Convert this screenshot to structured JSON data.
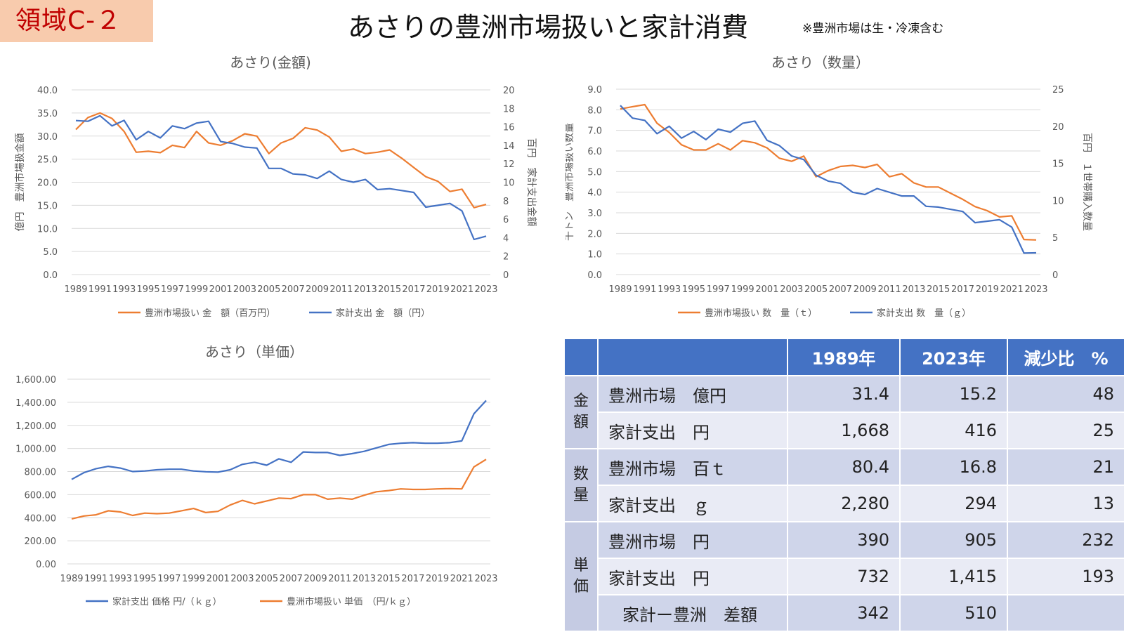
{
  "header": {
    "area_tag": "領域C-２",
    "title": "あさりの豊洲市場扱いと家計消費",
    "note": "※豊洲市場は生・冷凍含む"
  },
  "chart_data": [
    {
      "type": "line",
      "title": "あさり(金額)",
      "x": [
        1989,
        1990,
        1991,
        1992,
        1993,
        1994,
        1995,
        1996,
        1997,
        1998,
        1999,
        2000,
        2001,
        2002,
        2003,
        2004,
        2005,
        2006,
        2007,
        2008,
        2009,
        2010,
        2011,
        2012,
        2013,
        2014,
        2015,
        2016,
        2017,
        2018,
        2019,
        2020,
        2021,
        2022,
        2023
      ],
      "xticks": [
        "1989",
        "1991",
        "1993",
        "1995",
        "1997",
        "1999",
        "2001",
        "2003",
        "2005",
        "2007",
        "2009",
        "2011",
        "2013",
        "2015",
        "2017",
        "2019",
        "2021",
        "2023"
      ],
      "ylabel_left": "億円　豊洲市場扱金額",
      "ylabel_right": "百円　家計支出金額",
      "ylim_left": [
        0,
        40
      ],
      "ylim_right": [
        0,
        20
      ],
      "yticks_left": [
        "0.0",
        "5.0",
        "10.0",
        "15.0",
        "20.0",
        "25.0",
        "30.0",
        "35.0",
        "40.0"
      ],
      "yticks_right": [
        "0",
        "2",
        "4",
        "6",
        "8",
        "10",
        "12",
        "14",
        "16",
        "18",
        "20"
      ],
      "grid": true,
      "legend": "bottom",
      "series": [
        {
          "name": "豊洲市場扱い 金　額（百万円）",
          "axis": "left",
          "color": "#ed7d31",
          "values": [
            31.4,
            34.0,
            35.0,
            33.8,
            31.0,
            26.5,
            26.7,
            26.4,
            28.0,
            27.5,
            31.0,
            28.5,
            28.0,
            29.0,
            30.5,
            30.0,
            26.2,
            28.5,
            29.5,
            31.8,
            31.3,
            29.8,
            26.7,
            27.2,
            26.2,
            26.5,
            27.0,
            25.2,
            23.2,
            21.2,
            20.2,
            18.0,
            18.5,
            14.5,
            15.2
          ]
        },
        {
          "name": "家計支出 金　額（円）",
          "axis": "right",
          "color": "#4472c4",
          "values": [
            16.68,
            16.6,
            17.2,
            16.1,
            16.7,
            14.6,
            15.5,
            14.8,
            16.1,
            15.8,
            16.4,
            16.6,
            14.4,
            14.2,
            13.8,
            13.7,
            11.5,
            11.5,
            10.9,
            10.8,
            10.4,
            11.2,
            10.3,
            10.0,
            10.3,
            9.2,
            9.3,
            9.1,
            8.9,
            7.3,
            7.5,
            7.7,
            6.9,
            3.8,
            4.16
          ]
        }
      ]
    },
    {
      "type": "line",
      "title": "あさり（数量）",
      "x": [
        1989,
        1990,
        1991,
        1992,
        1993,
        1994,
        1995,
        1996,
        1997,
        1998,
        1999,
        2000,
        2001,
        2002,
        2003,
        2004,
        2005,
        2006,
        2007,
        2008,
        2009,
        2010,
        2011,
        2012,
        2013,
        2014,
        2015,
        2016,
        2017,
        2018,
        2019,
        2020,
        2021,
        2022,
        2023
      ],
      "xticks": [
        "1989",
        "1991",
        "1993",
        "1995",
        "1997",
        "1999",
        "2001",
        "2003",
        "2005",
        "2007",
        "2009",
        "2011",
        "2013",
        "2015",
        "2017",
        "2019",
        "2021",
        "2023"
      ],
      "ylabel_left": "千トン　豊洲市場扱い数量",
      "ylabel_right": "百円　１世帯購入数量",
      "ylim_left": [
        0,
        9
      ],
      "ylim_right": [
        0,
        25
      ],
      "yticks_left": [
        "0.0",
        "1.0",
        "2.0",
        "3.0",
        "4.0",
        "5.0",
        "6.0",
        "7.0",
        "8.0",
        "9.0"
      ],
      "yticks_right": [
        "0",
        "5",
        "10",
        "15",
        "20",
        "25"
      ],
      "grid": true,
      "legend": "bottom",
      "series": [
        {
          "name": "豊洲市場扱い 数　量（ｔ）",
          "axis": "left",
          "color": "#ed7d31",
          "values": [
            8.04,
            8.15,
            8.25,
            7.35,
            6.9,
            6.3,
            6.05,
            6.05,
            6.35,
            6.05,
            6.5,
            6.4,
            6.15,
            5.65,
            5.5,
            5.75,
            4.75,
            5.05,
            5.25,
            5.3,
            5.2,
            5.35,
            4.75,
            4.9,
            4.45,
            4.25,
            4.25,
            3.95,
            3.65,
            3.3,
            3.1,
            2.8,
            2.85,
            1.7,
            1.68
          ]
        },
        {
          "name": "家計支出 数　量（ｇ）",
          "axis": "right",
          "color": "#4472c4",
          "values": [
            22.8,
            21.1,
            20.8,
            19.0,
            20.0,
            18.4,
            19.3,
            18.2,
            19.6,
            19.2,
            20.4,
            20.7,
            18.1,
            17.4,
            16.0,
            15.5,
            13.4,
            12.6,
            12.3,
            11.1,
            10.8,
            11.6,
            11.1,
            10.6,
            10.6,
            9.2,
            9.1,
            8.8,
            8.5,
            7.0,
            7.2,
            7.4,
            6.4,
            2.9,
            2.94
          ]
        }
      ]
    },
    {
      "type": "line",
      "title": "あさり（単価）",
      "x": [
        1989,
        1990,
        1991,
        1992,
        1993,
        1994,
        1995,
        1996,
        1997,
        1998,
        1999,
        2000,
        2001,
        2002,
        2003,
        2004,
        2005,
        2006,
        2007,
        2008,
        2009,
        2010,
        2011,
        2012,
        2013,
        2014,
        2015,
        2016,
        2017,
        2018,
        2019,
        2020,
        2021,
        2022,
        2023
      ],
      "xticks": [
        "1989",
        "1991",
        "1993",
        "1995",
        "1997",
        "1999",
        "2001",
        "2003",
        "2005",
        "2007",
        "2009",
        "2011",
        "2013",
        "2015",
        "2017",
        "2019",
        "2021",
        "2023"
      ],
      "ylim": [
        0,
        1600
      ],
      "yticks": [
        "0.00",
        "200.00",
        "400.00",
        "600.00",
        "800.00",
        "1,000.00",
        "1,200.00",
        "1,400.00",
        "1,600.00"
      ],
      "grid": true,
      "legend": "bottom",
      "series": [
        {
          "name": "家計支出 価格 円/（ｋｇ）",
          "color": "#4472c4",
          "values": [
            732,
            790,
            825,
            845,
            830,
            800,
            805,
            815,
            820,
            820,
            805,
            798,
            795,
            815,
            862,
            880,
            855,
            910,
            880,
            970,
            965,
            965,
            940,
            955,
            975,
            1005,
            1035,
            1045,
            1050,
            1045,
            1045,
            1050,
            1065,
            1300,
            1415
          ]
        },
        {
          "name": "豊洲市場扱い 単価　（円/ｋｇ）",
          "color": "#ed7d31",
          "values": [
            390,
            415,
            425,
            460,
            450,
            420,
            440,
            435,
            440,
            460,
            480,
            445,
            455,
            510,
            550,
            520,
            545,
            570,
            565,
            600,
            600,
            560,
            570,
            560,
            595,
            625,
            635,
            650,
            645,
            645,
            650,
            652,
            650,
            840,
            905
          ]
        }
      ]
    }
  ],
  "summary_table": {
    "headers": [
      "",
      "",
      "1989年",
      "2023年",
      "減少比　%"
    ],
    "groups": [
      {
        "category": "金額",
        "rows": [
          {
            "label": "豊洲市場　億円",
            "v1989": "31.4",
            "v2023": "15.2",
            "ratio": "48"
          },
          {
            "label": "家計支出　円",
            "v1989": "1,668",
            "v2023": "416",
            "ratio": "25"
          }
        ]
      },
      {
        "category": "数量",
        "rows": [
          {
            "label": "豊洲市場　百ｔ",
            "v1989": "80.4",
            "v2023": "16.8",
            "ratio": "21"
          },
          {
            "label": "家計支出　ｇ",
            "v1989": "2,280",
            "v2023": "294",
            "ratio": "13"
          }
        ]
      },
      {
        "category": "単価",
        "rows": [
          {
            "label": "豊洲市場　円",
            "v1989": "390",
            "v2023": "905",
            "ratio": "232"
          },
          {
            "label": "家計支出　円",
            "v1989": "732",
            "v2023": "1,415",
            "ratio": "193"
          },
          {
            "label": "家計ー豊洲　差額",
            "v1989": "342",
            "v2023": "510",
            "ratio": ""
          }
        ]
      }
    ]
  }
}
